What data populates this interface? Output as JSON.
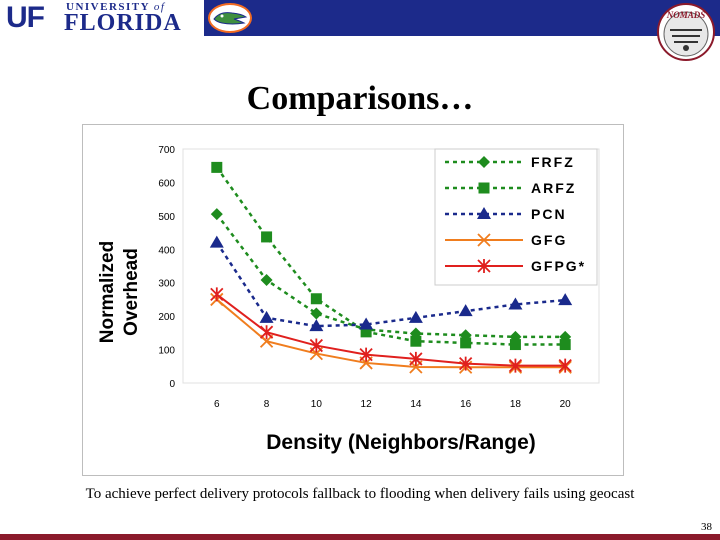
{
  "header": {
    "university_top": "UNIVERSITY",
    "university_of": "of",
    "university_name": "FLORIDA",
    "uf_mark": "UF",
    "nomads_badge": "NOMADS",
    "colors": {
      "banner": "#1c2a8a",
      "footer": "#8b1a2b",
      "gator_orange": "#f26b21"
    },
    "icons": [
      "uf-logo-icon",
      "gator-logo-icon",
      "nomads-logo-icon"
    ]
  },
  "slide": {
    "title": "Comparisons…",
    "caption": "To achieve perfect delivery protocols fallback to flooding when delivery fails using geocast",
    "page_number": "38"
  },
  "chart_data": {
    "type": "line",
    "title": "",
    "xlabel": "Density (Neighbors/Range)",
    "ylabel_line1": "Normalized",
    "ylabel_line2": "Overhead",
    "x": [
      6,
      8,
      10,
      12,
      14,
      16,
      18,
      20
    ],
    "ylim": [
      0,
      700
    ],
    "yticks": [
      0,
      100,
      200,
      300,
      400,
      500,
      600,
      700
    ],
    "grid": false,
    "legend_position": "top-right",
    "series": [
      {
        "name": "FRFZ",
        "color": "#1e8c1e",
        "dash": "dotted",
        "marker": "diamond",
        "values": [
          505,
          308,
          208,
          160,
          148,
          143,
          138,
          138
        ]
      },
      {
        "name": "ARFZ",
        "color": "#1e8c1e",
        "dash": "dotted",
        "marker": "square",
        "values": [
          645,
          437,
          252,
          153,
          125,
          120,
          115,
          115
        ]
      },
      {
        "name": "PCN",
        "color": "#1a2a8c",
        "dash": "dotted",
        "marker": "triangle",
        "values": [
          420,
          195,
          170,
          175,
          195,
          215,
          235,
          248
        ]
      },
      {
        "name": "GFG",
        "color": "#f07d1e",
        "dash": "solid",
        "marker": "x",
        "values": [
          250,
          125,
          88,
          60,
          48,
          47,
          47,
          47
        ]
      },
      {
        "name": "GFPG*",
        "color": "#e0201e",
        "dash": "solid",
        "marker": "asterisk",
        "values": [
          265,
          152,
          112,
          85,
          72,
          58,
          52,
          52
        ]
      }
    ]
  }
}
